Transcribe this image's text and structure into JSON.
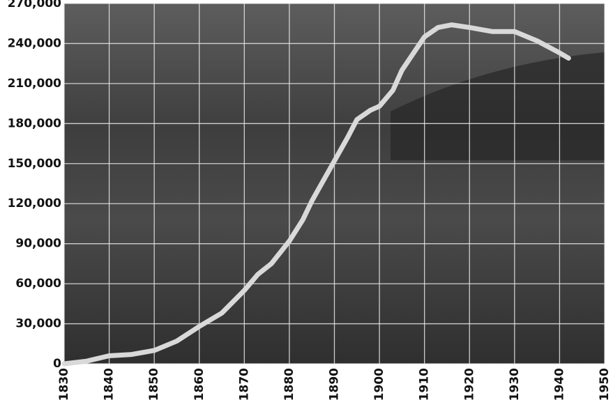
{
  "chart_data": {
    "type": "line",
    "x": [
      1830,
      1835,
      1840,
      1845,
      1850,
      1855,
      1860,
      1865,
      1870,
      1873,
      1876,
      1880,
      1883,
      1885,
      1888,
      1890,
      1893,
      1895,
      1898,
      1900,
      1903,
      1905,
      1908,
      1910,
      1913,
      1916,
      1920,
      1925,
      1930,
      1935,
      1940,
      1942
    ],
    "series": [
      {
        "color": "#d9d9d9",
        "values": [
          0,
          2000,
          6000,
          7000,
          10000,
          17000,
          28000,
          38000,
          55000,
          67000,
          75000,
          92000,
          108000,
          122000,
          140000,
          152000,
          170000,
          183000,
          190000,
          193000,
          205000,
          220000,
          235000,
          245000,
          252000,
          254000,
          252000,
          249000,
          249000,
          242000,
          233000,
          229000
        ]
      }
    ],
    "xlim": [
      1830,
      1950
    ],
    "xticks": [
      1830,
      1840,
      1850,
      1860,
      1870,
      1880,
      1890,
      1900,
      1910,
      1920,
      1930,
      1940,
      1950
    ],
    "ylim": [
      0,
      270000
    ],
    "yticks": [
      0,
      {
        "value": 30000,
        "label": "30,000"
      },
      {
        "value": 60000,
        "label": "60,000"
      },
      {
        "value": 90000,
        "label": "90,000"
      },
      {
        "value": 120000,
        "label": "120,000"
      },
      {
        "value": 150000,
        "label": "150,000"
      },
      {
        "value": 180000,
        "label": "180,000"
      },
      {
        "value": 210000,
        "label": "210,000"
      },
      {
        "value": 240000,
        "label": "240,000"
      },
      {
        "value": 270000,
        "label": "270,000"
      }
    ],
    "grid": true
  }
}
